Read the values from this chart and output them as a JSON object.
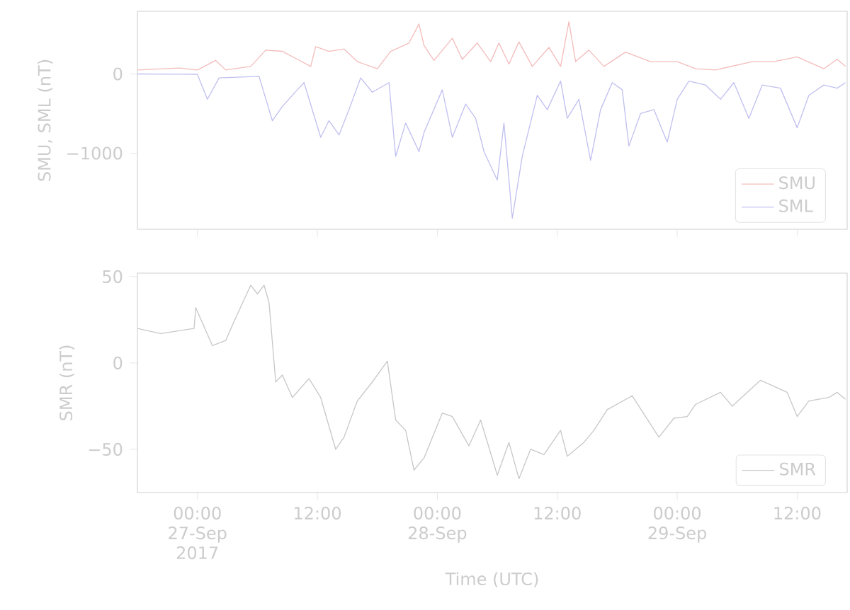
{
  "chart_data": [
    {
      "type": "line",
      "ylabel": "SMU, SML (nT)",
      "xlim": [
        "2017-09-26T18:00",
        "2017-09-29T17:00"
      ],
      "ylim": [
        -1960,
        790
      ],
      "xticks": [
        {
          "value": "2017-09-27T00:00",
          "label": null
        },
        {
          "value": "2017-09-27T12:00",
          "label": null
        },
        {
          "value": "2017-09-28T00:00",
          "label": null
        },
        {
          "value": "2017-09-28T12:00",
          "label": null
        },
        {
          "value": "2017-09-29T00:00",
          "label": null
        },
        {
          "value": "2017-09-29T12:00",
          "label": null
        }
      ],
      "yticks": [
        {
          "value": -1000,
          "label": "−1000"
        },
        0
      ],
      "tick_labels": "y",
      "grid": false,
      "legend": "bottom right",
      "series": [
        {
          "name": "SMU",
          "color": "#f4bcbc",
          "x": [
            "2017-09-26T18:00",
            "2017-09-26T22:10",
            "2017-09-27T00:00",
            "2017-09-27T01:50",
            "2017-09-27T02:50",
            "2017-09-27T05:20",
            "2017-09-27T06:50",
            "2017-09-27T08:30",
            "2017-09-27T10:00",
            "2017-09-27T11:20",
            "2017-09-27T11:50",
            "2017-09-27T13:10",
            "2017-09-27T14:40",
            "2017-09-27T16:00",
            "2017-09-27T18:00",
            "2017-09-27T19:20",
            "2017-09-27T21:10",
            "2017-09-27T22:10",
            "2017-09-27T22:40",
            "2017-09-27T23:40",
            "2017-09-28T01:30",
            "2017-09-28T02:30",
            "2017-09-28T04:00",
            "2017-09-28T05:20",
            "2017-09-28T06:10",
            "2017-09-28T07:10",
            "2017-09-28T08:10",
            "2017-09-28T09:30",
            "2017-09-28T11:10",
            "2017-09-28T12:20",
            "2017-09-28T13:10",
            "2017-09-28T13:50",
            "2017-09-28T15:10",
            "2017-09-28T16:40",
            "2017-09-28T18:50",
            "2017-09-28T21:20",
            "2017-09-29T00:00",
            "2017-09-29T01:50",
            "2017-09-29T03:50",
            "2017-09-29T07:30",
            "2017-09-29T09:40",
            "2017-09-29T12:00",
            "2017-09-29T14:40",
            "2017-09-29T16:00",
            "2017-09-29T16:50"
          ],
          "values": [
            50,
            75,
            50,
            170,
            50,
            95,
            300,
            285,
            185,
            95,
            345,
            285,
            315,
            155,
            65,
            285,
            390,
            630,
            360,
            170,
            450,
            185,
            390,
            155,
            390,
            125,
            405,
            95,
            335,
            95,
            660,
            155,
            300,
            95,
            275,
            155,
            155,
            65,
            50,
            155,
            155,
            215,
            65,
            185,
            95
          ]
        },
        {
          "name": "SML",
          "color": "#c0c0f0",
          "x": [
            "2017-09-26T18:00",
            "2017-09-27T00:00",
            "2017-09-27T01:00",
            "2017-09-27T02:10",
            "2017-09-27T06:10",
            "2017-09-27T07:30",
            "2017-09-27T08:30",
            "2017-09-27T10:00",
            "2017-09-27T10:40",
            "2017-09-27T12:20",
            "2017-09-27T13:10",
            "2017-09-27T14:10",
            "2017-09-27T15:10",
            "2017-09-27T16:20",
            "2017-09-27T17:30",
            "2017-09-27T19:10",
            "2017-09-27T19:50",
            "2017-09-27T20:50",
            "2017-09-27T22:10",
            "2017-09-27T22:40",
            "2017-09-28T00:30",
            "2017-09-28T01:30",
            "2017-09-28T02:50",
            "2017-09-28T03:50",
            "2017-09-28T04:40",
            "2017-09-28T06:00",
            "2017-09-28T06:40",
            "2017-09-28T07:30",
            "2017-09-28T08:30",
            "2017-09-28T10:00",
            "2017-09-28T11:00",
            "2017-09-28T12:20",
            "2017-09-28T13:00",
            "2017-09-28T14:10",
            "2017-09-28T15:20",
            "2017-09-28T16:20",
            "2017-09-28T17:30",
            "2017-09-28T18:30",
            "2017-09-28T19:10",
            "2017-09-28T20:20",
            "2017-09-28T21:40",
            "2017-09-28T23:00",
            "2017-09-29T00:00",
            "2017-09-29T01:10",
            "2017-09-29T02:50",
            "2017-09-29T04:20",
            "2017-09-29T05:40",
            "2017-09-29T07:10",
            "2017-09-29T08:30",
            "2017-09-29T10:20",
            "2017-09-29T12:00",
            "2017-09-29T13:10",
            "2017-09-29T14:40",
            "2017-09-29T16:00",
            "2017-09-29T16:50"
          ],
          "values": [
            0,
            -5,
            -320,
            -50,
            -30,
            -590,
            -410,
            -200,
            -110,
            -800,
            -590,
            -770,
            -450,
            -50,
            -230,
            -110,
            -1040,
            -620,
            -980,
            -740,
            -200,
            -800,
            -380,
            -560,
            -980,
            -1340,
            -620,
            -1820,
            -1040,
            -270,
            -450,
            -90,
            -560,
            -320,
            -1090,
            -450,
            -110,
            -200,
            -910,
            -500,
            -450,
            -860,
            -320,
            -90,
            -140,
            -320,
            -110,
            -560,
            -140,
            -180,
            -680,
            -270,
            -140,
            -180,
            -110
          ]
        }
      ]
    },
    {
      "type": "line",
      "xlabel": "Time (UTC)",
      "ylabel": "SMR (nT)",
      "xlim": [
        "2017-09-26T18:00",
        "2017-09-29T17:00"
      ],
      "ylim": [
        -75,
        52
      ],
      "xticks": [
        {
          "value": "2017-09-27T00:00",
          "label": "00:00 27-Sep 2017"
        },
        {
          "value": "2017-09-27T12:00",
          "label": "12:00"
        },
        {
          "value": "2017-09-28T00:00",
          "label": "00:00 28-Sep"
        },
        {
          "value": "2017-09-28T12:00",
          "label": "12:00"
        },
        {
          "value": "2017-09-29T00:00",
          "label": "00:00 29-Sep"
        },
        {
          "value": "2017-09-29T12:00",
          "label": "12:00"
        }
      ],
      "yticks": [
        {
          "value": -50,
          "label": "−50"
        },
        0,
        50
      ],
      "grid": false,
      "legend": "bottom right",
      "series": [
        {
          "name": "SMR",
          "color": "#c8c8c8",
          "x": [
            "2017-09-26T18:00",
            "2017-09-26T20:20",
            "2017-09-26T23:40",
            "2017-09-26T23:50",
            "2017-09-27T01:30",
            "2017-09-27T02:50",
            "2017-09-27T03:40",
            "2017-09-27T05:20",
            "2017-09-27T06:00",
            "2017-09-27T06:40",
            "2017-09-27T07:10",
            "2017-09-27T07:50",
            "2017-09-27T08:30",
            "2017-09-27T09:30",
            "2017-09-27T11:10",
            "2017-09-27T12:20",
            "2017-09-27T13:50",
            "2017-09-27T14:40",
            "2017-09-27T16:00",
            "2017-09-27T17:30",
            "2017-09-27T19:00",
            "2017-09-27T19:50",
            "2017-09-27T20:50",
            "2017-09-27T21:40",
            "2017-09-27T22:40",
            "2017-09-28T00:30",
            "2017-09-28T01:30",
            "2017-09-28T03:10",
            "2017-09-28T04:20",
            "2017-09-28T06:00",
            "2017-09-28T07:10",
            "2017-09-28T08:10",
            "2017-09-28T09:20",
            "2017-09-28T10:40",
            "2017-09-28T12:20",
            "2017-09-28T13:00",
            "2017-09-28T14:40",
            "2017-09-28T15:40",
            "2017-09-28T17:00",
            "2017-09-28T19:30",
            "2017-09-28T20:50",
            "2017-09-28T22:10",
            "2017-09-28T23:40",
            "2017-09-29T01:00",
            "2017-09-29T01:50",
            "2017-09-29T04:20",
            "2017-09-29T05:30",
            "2017-09-29T08:20",
            "2017-09-29T11:00",
            "2017-09-29T12:00",
            "2017-09-29T13:10",
            "2017-09-29T15:10",
            "2017-09-29T16:00",
            "2017-09-29T16:50"
          ],
          "values": [
            20,
            17,
            20,
            32,
            10,
            13,
            24,
            45,
            40,
            45,
            35,
            -11,
            -7,
            -20,
            -9,
            -20,
            -50,
            -43,
            -22,
            -11,
            1,
            -33,
            -39,
            -62,
            -55,
            -29,
            -31,
            -48,
            -33,
            -65,
            -46,
            -67,
            -50,
            -53,
            -39,
            -54,
            -46,
            -39,
            -27,
            -19,
            -31,
            -43,
            -32,
            -31,
            -24,
            -17,
            -25,
            -10,
            -17,
            -31,
            -22,
            -20,
            -17,
            -21
          ]
        }
      ]
    }
  ]
}
